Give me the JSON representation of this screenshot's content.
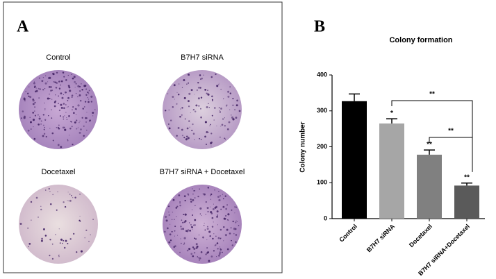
{
  "panel_a": {
    "label": "A",
    "dishes": [
      "Control",
      "B7H7 siRNA",
      "Docetaxel",
      "B7H7 siRNA + Docetaxel"
    ]
  },
  "chart_data": {
    "type": "bar",
    "panel_label": "B",
    "title": "Colony formation",
    "y_label": "Colony number",
    "categories": [
      "Control",
      "B7H7 siRNA",
      "Docetaxel",
      "B7H7 siRNA+Docetaxel"
    ],
    "values": [
      327,
      265,
      178,
      92
    ],
    "errors": [
      20,
      13,
      13,
      7
    ],
    "colors": [
      "#000000",
      "#a6a6a6",
      "#808080",
      "#5a5a5a"
    ],
    "bar_labels": [
      null,
      "*",
      "**",
      "**"
    ],
    "comparisons": [
      {
        "from": 1,
        "to": 3,
        "label": "**"
      },
      {
        "from": 2,
        "to": 3,
        "label": "**"
      }
    ],
    "ylim": [
      0,
      400
    ],
    "yticks": [
      0,
      100,
      200,
      300,
      400
    ]
  }
}
